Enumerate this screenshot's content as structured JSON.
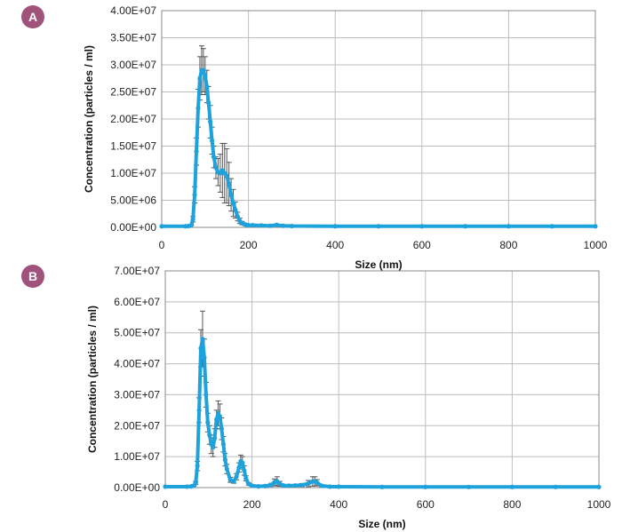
{
  "panels": [
    {
      "label": "A"
    },
    {
      "label": "B"
    }
  ],
  "colors": {
    "line": "#1ea2dc",
    "error_bar": "#555555",
    "grid": "#bdbdbd",
    "badge": "#a0527a"
  },
  "chart_data": [
    {
      "type": "line",
      "title": "",
      "xlabel": "Size (nm)",
      "ylabel": "Concentration (particles / ml)",
      "xlim": [
        0,
        1000
      ],
      "ylim": [
        0,
        40000000
      ],
      "xticks": [
        "0",
        "200",
        "400",
        "600",
        "800",
        "1000"
      ],
      "yticks": [
        "0.00E+00",
        "5.00E+06",
        "1.00E+07",
        "1.50E+07",
        "2.00E+07",
        "2.50E+07",
        "3.00E+07",
        "3.50E+07",
        "4.00E+07"
      ],
      "grid": true,
      "error_bars": true,
      "series": [
        {
          "x": [
            0,
            55,
            62,
            68,
            72,
            76,
            80,
            84,
            88,
            92,
            96,
            100,
            104,
            108,
            112,
            116,
            120,
            125,
            130,
            135,
            140,
            145,
            150,
            155,
            160,
            165,
            170,
            175,
            180,
            185,
            190,
            195,
            200,
            210,
            230,
            250,
            265,
            280,
            300,
            400,
            500,
            600,
            700,
            800,
            900,
            1000
          ],
          "y": [
            200000,
            200000,
            250000,
            400000,
            1500000,
            6000000,
            14000000,
            22000000,
            27500000,
            29000000,
            29000000,
            28000000,
            26000000,
            23000000,
            19500000,
            16000000,
            13000000,
            11000000,
            10200000,
            10000000,
            10500000,
            10000000,
            9500000,
            8000000,
            6000000,
            4500000,
            3200000,
            2000000,
            1200000,
            800000,
            600000,
            450000,
            400000,
            400000,
            350000,
            300000,
            450000,
            300000,
            250000,
            200000,
            200000,
            200000,
            200000,
            200000,
            200000,
            200000
          ],
          "err": [
            0,
            0,
            0,
            100000,
            500000,
            1500000,
            2500000,
            3500000,
            4000000,
            4500000,
            4000000,
            3500000,
            3000000,
            3000000,
            3000000,
            2500000,
            2000000,
            2000000,
            2500000,
            3500000,
            5000000,
            5500000,
            5000000,
            4000000,
            3000000,
            2500000,
            1500000,
            800000,
            500000,
            300000,
            200000,
            150000,
            100000,
            100000,
            100000,
            50000,
            100000,
            50000,
            0,
            0,
            0,
            0,
            0,
            0,
            0,
            0
          ]
        }
      ]
    },
    {
      "type": "line",
      "title": "",
      "xlabel": "Size (nm)",
      "ylabel": "Concentration (particles / ml)",
      "xlim": [
        0,
        1000
      ],
      "ylim": [
        0,
        70000000
      ],
      "xticks": [
        "0",
        "200",
        "400",
        "600",
        "800",
        "1000"
      ],
      "yticks": [
        "0.00E+00",
        "1.00E+07",
        "2.00E+07",
        "3.00E+07",
        "4.00E+07",
        "5.00E+07",
        "6.00E+07",
        "7.00E+07"
      ],
      "grid": true,
      "error_bars": true,
      "series": [
        {
          "x": [
            0,
            50,
            60,
            66,
            70,
            74,
            78,
            82,
            86,
            90,
            94,
            98,
            102,
            106,
            110,
            114,
            118,
            122,
            126,
            130,
            134,
            138,
            142,
            150,
            158,
            164,
            170,
            174,
            178,
            182,
            186,
            192,
            200,
            215,
            230,
            245,
            252,
            258,
            264,
            272,
            285,
            300,
            315,
            330,
            340,
            345,
            350,
            360,
            380,
            400,
            500,
            600,
            700,
            800,
            900,
            1000
          ],
          "y": [
            300000,
            300000,
            400000,
            600000,
            1500000,
            7000000,
            25000000,
            45000000,
            48000000,
            42000000,
            30000000,
            21000000,
            17000000,
            14000000,
            13000000,
            16000000,
            22000000,
            24000000,
            23000000,
            19000000,
            14000000,
            9000000,
            6000000,
            2500000,
            2000000,
            3500000,
            6500000,
            8500000,
            8000000,
            5500000,
            3000000,
            1200000,
            600000,
            400000,
            500000,
            900000,
            1800000,
            2000000,
            1200000,
            700000,
            600000,
            700000,
            800000,
            1300000,
            2000000,
            2000000,
            1600000,
            600000,
            300000,
            300000,
            200000,
            200000,
            200000,
            200000,
            200000,
            200000
          ],
          "err": [
            0,
            0,
            0,
            100000,
            500000,
            1500000,
            4000000,
            6000000,
            9000000,
            6000000,
            4000000,
            3000000,
            3000000,
            3000000,
            3000000,
            3000000,
            3000000,
            4000000,
            4000000,
            3500000,
            2500000,
            2000000,
            1500000,
            800000,
            600000,
            1000000,
            1500000,
            2000000,
            2000000,
            1500000,
            800000,
            400000,
            200000,
            100000,
            200000,
            500000,
            1000000,
            1500000,
            800000,
            300000,
            200000,
            300000,
            500000,
            1000000,
            1500000,
            1500000,
            1000000,
            300000,
            100000,
            50000,
            0,
            0,
            0,
            0,
            0,
            0
          ]
        }
      ]
    }
  ]
}
